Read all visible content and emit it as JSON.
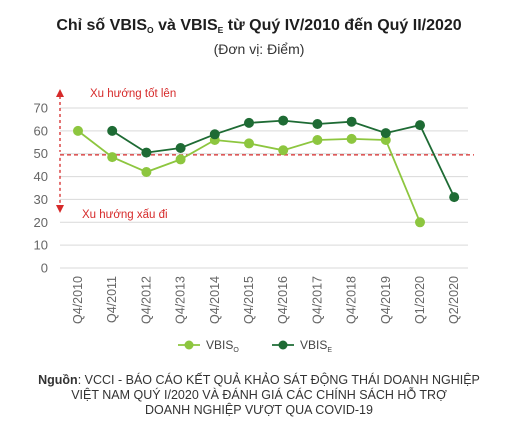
{
  "chart_data": {
    "type": "line",
    "title": {
      "prefix": "Chỉ số VBIS",
      "sub1": "O",
      "middle": " và VBIS",
      "sub2": "E",
      "suffix": " từ Quý IV/2010 đến Quý II/2020"
    },
    "subtitle": "(Đơn vị: Điểm)",
    "categories": [
      "Q4/2010",
      "Q4/2011",
      "Q4/2012",
      "Q4/2013",
      "Q4/2014",
      "Q4/2015",
      "Q4/2016",
      "Q4/2017",
      "Q4/2018",
      "Q4/2019",
      "Q1/2020",
      "Q2/2020"
    ],
    "series": [
      {
        "name": "VBIS",
        "sub": "O",
        "color": "#8dc63f",
        "values": [
          60,
          48.5,
          42,
          47.5,
          56,
          54.5,
          51.5,
          56,
          56.5,
          56,
          20,
          null
        ]
      },
      {
        "name": "VBIS",
        "sub": "E",
        "color": "#1e6b34",
        "values": [
          null,
          60,
          50.5,
          52.5,
          58.5,
          63.5,
          64.5,
          63,
          64,
          59,
          62.5,
          31
        ]
      }
    ],
    "y_ticks": [
      "0",
      "10",
      "20",
      "30",
      "40",
      "50",
      "60",
      "70"
    ],
    "ylim": [
      0,
      70
    ],
    "reference_line": {
      "value": 49.5,
      "color": "#d62a2a",
      "style": "dashed"
    },
    "annotations": {
      "up": "Xu hướng tốt lên",
      "down": "Xu hướng xấu đi",
      "color": "#d62a2a"
    },
    "grid": true,
    "legend": "bottom-center"
  },
  "source": {
    "label": "Nguồn",
    "line1": "VCCI - BÁO CÁO KẾT QUẢ KHẢO SÁT ĐỘNG THÁI DOANH NGHIỆP",
    "line2": "VIỆT NAM QUÝ I/2020 VÀ ĐÁNH GIÁ CÁC CHÍNH SÁCH HỖ TRỢ",
    "line3": "DOANH NGHIỆP VƯỢT QUA COVID-19"
  }
}
